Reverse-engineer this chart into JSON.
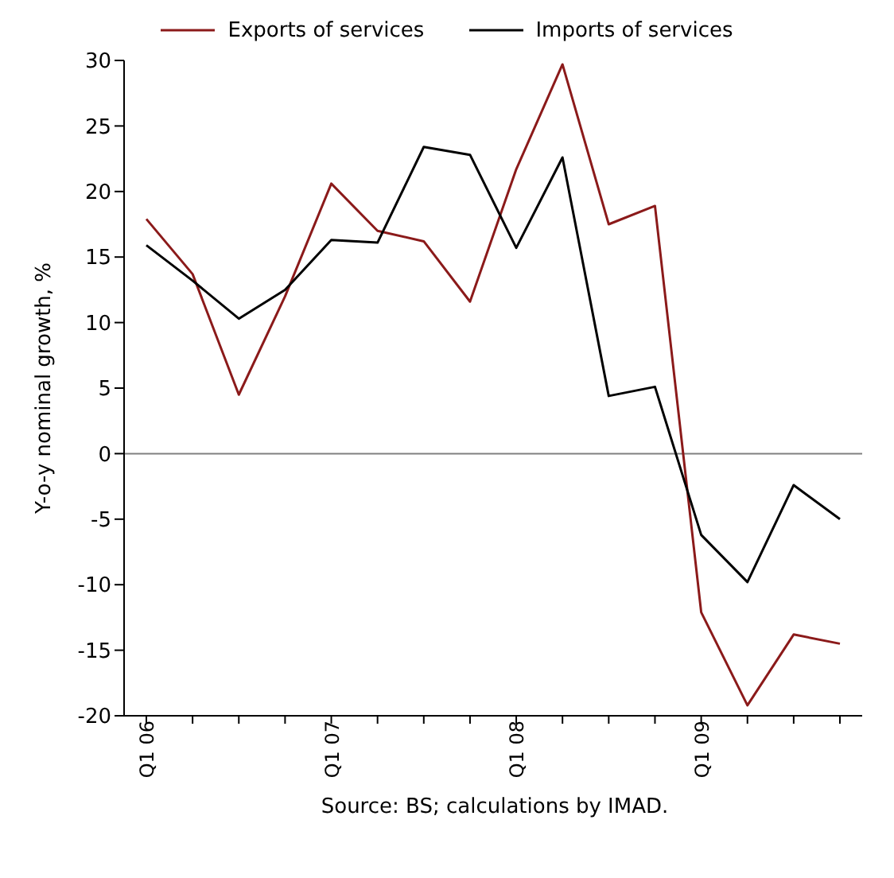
{
  "chart_data": {
    "type": "line",
    "ylabel": "Y-o-y nominal growth, %",
    "categories": [
      "Q1 06",
      null,
      null,
      null,
      "Q1 07",
      null,
      null,
      null,
      "Q1 08",
      null,
      null,
      null,
      "Q1 09",
      null,
      null,
      null
    ],
    "series": [
      {
        "name": "Exports of services",
        "color": "#8b1a1a",
        "values": [
          17.9,
          13.7,
          4.5,
          12,
          20.6,
          17,
          16.2,
          11.6,
          21.7,
          29.7,
          17.5,
          18.9,
          -12.1,
          -19.2,
          -13.8,
          -14.5
        ]
      },
      {
        "name": "Imports of services",
        "color": "#000000",
        "values": [
          15.9,
          13.2,
          10.3,
          12.5,
          16.3,
          16.1,
          23.4,
          22.8,
          15.7,
          22.6,
          4.4,
          5.1,
          -6.2,
          -9.8,
          -2.4,
          -5
        ]
      }
    ],
    "ylim": [
      -20,
      30
    ],
    "yticks": [
      -20,
      -15,
      -10,
      -5,
      0,
      5,
      10,
      15,
      20,
      25,
      30
    ],
    "legend": "top",
    "marker": "none",
    "line_style": "solid",
    "ref_lines": [
      {
        "axis": "y",
        "value": 0,
        "color": "#808080"
      }
    ],
    "annotations": [
      "Source: BS; calculations by IMAD."
    ]
  }
}
